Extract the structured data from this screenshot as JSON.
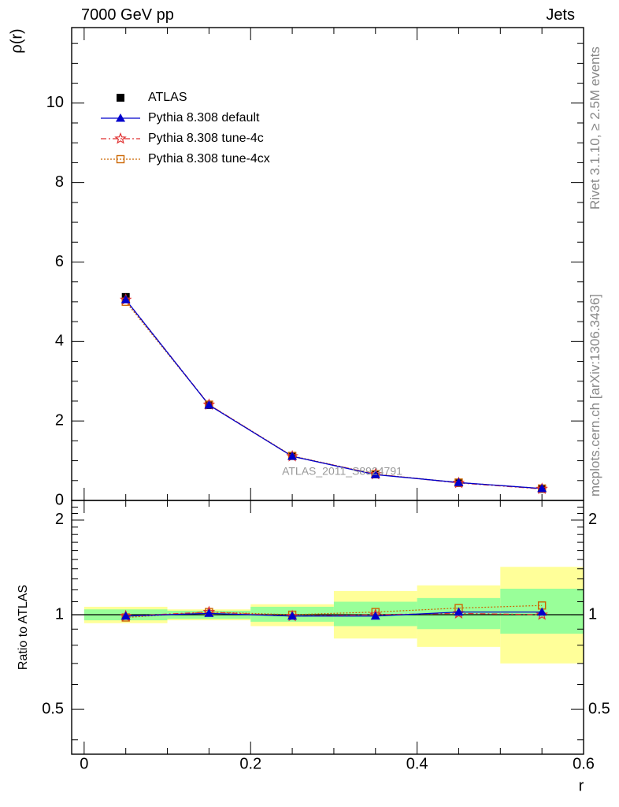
{
  "header": {
    "process": "7000 GeV pp",
    "observable": "Jets"
  },
  "side": {
    "rivet": "Rivet 3.1.10, ≥ 2.5M events",
    "mcplots": "mcplots.cern.ch [arXiv:1306.3436]"
  },
  "watermark": "ATLAS_2011_S8924791",
  "colors": {
    "atlas": "#000000",
    "default": "#0000cc",
    "tune4c": "#e03030",
    "tune4cx": "#cc6600",
    "band_inner": "#99ff99",
    "band_outer": "#ffff99"
  },
  "chart_data": [
    {
      "type": "line",
      "panel": "main",
      "ylabel": "ρ(r)",
      "xlim": [
        -0.015,
        0.6
      ],
      "ylim": [
        0,
        11.9
      ],
      "y_ticks": [
        0,
        2,
        4,
        6,
        8,
        10
      ],
      "y_tick_labels": [
        "0",
        "2",
        "4",
        "6",
        "8",
        "10"
      ],
      "legend": {
        "placement": "top-left",
        "entries": [
          "ATLAS",
          "Pythia 8.308 default",
          "Pythia 8.308 tune-4c",
          "Pythia 8.308 tune-4cx"
        ]
      },
      "x": [
        0.05,
        0.15,
        0.25,
        0.35,
        0.45,
        0.55
      ],
      "series": [
        {
          "name": "ATLAS",
          "marker": "square",
          "values": [
            5.12,
            2.4,
            1.12,
            0.66,
            0.44,
            0.29
          ]
        },
        {
          "name": "Pythia 8.308 default",
          "marker": "triangle",
          "values": [
            5.05,
            2.4,
            1.11,
            0.65,
            0.45,
            0.3
          ]
        },
        {
          "name": "Pythia 8.308 tune-4c",
          "marker": "star",
          "values": [
            5.05,
            2.41,
            1.11,
            0.66,
            0.44,
            0.29
          ]
        },
        {
          "name": "Pythia 8.308 tune-4cx",
          "marker": "open-square",
          "values": [
            5.0,
            2.41,
            1.12,
            0.66,
            0.45,
            0.3
          ]
        }
      ]
    },
    {
      "type": "line",
      "panel": "ratio",
      "xlabel": "r",
      "ylabel": "Ratio to ATLAS",
      "xlim": [
        -0.015,
        0.6
      ],
      "ylim": [
        0.36,
        2.31
      ],
      "x_ticks": [
        0,
        0.2,
        0.4,
        0.6
      ],
      "x_tick_labels": [
        "0",
        "0.2",
        "0.4",
        "0.6"
      ],
      "y_ticks": [
        0.5,
        1,
        2
      ],
      "y_tick_labels": [
        "0.5",
        "1",
        "2"
      ],
      "bins": [
        [
          0.0,
          0.1
        ],
        [
          0.1,
          0.2
        ],
        [
          0.2,
          0.3
        ],
        [
          0.3,
          0.4
        ],
        [
          0.4,
          0.5
        ],
        [
          0.5,
          0.6
        ]
      ],
      "band_inner": [
        [
          0.96,
          1.04
        ],
        [
          0.97,
          1.03
        ],
        [
          0.95,
          1.06
        ],
        [
          0.92,
          1.1
        ],
        [
          0.9,
          1.13
        ],
        [
          0.87,
          1.21
        ]
      ],
      "band_outer": [
        [
          0.94,
          1.06
        ],
        [
          0.96,
          1.04
        ],
        [
          0.92,
          1.08
        ],
        [
          0.84,
          1.19
        ],
        [
          0.79,
          1.24
        ],
        [
          0.7,
          1.42
        ]
      ],
      "x": [
        0.05,
        0.15,
        0.25,
        0.35,
        0.45,
        0.55
      ],
      "series": [
        {
          "name": "Pythia 8.308 default",
          "marker": "triangle",
          "values": [
            0.99,
            1.01,
            0.99,
            0.99,
            1.02,
            1.02
          ]
        },
        {
          "name": "Pythia 8.308 tune-4c",
          "marker": "star",
          "values": [
            0.99,
            1.02,
            0.99,
            1.0,
            1.01,
            1.0
          ]
        },
        {
          "name": "Pythia 8.308 tune-4cx",
          "marker": "open-square",
          "values": [
            0.98,
            1.02,
            1.0,
            1.02,
            1.05,
            1.07
          ]
        }
      ]
    }
  ]
}
